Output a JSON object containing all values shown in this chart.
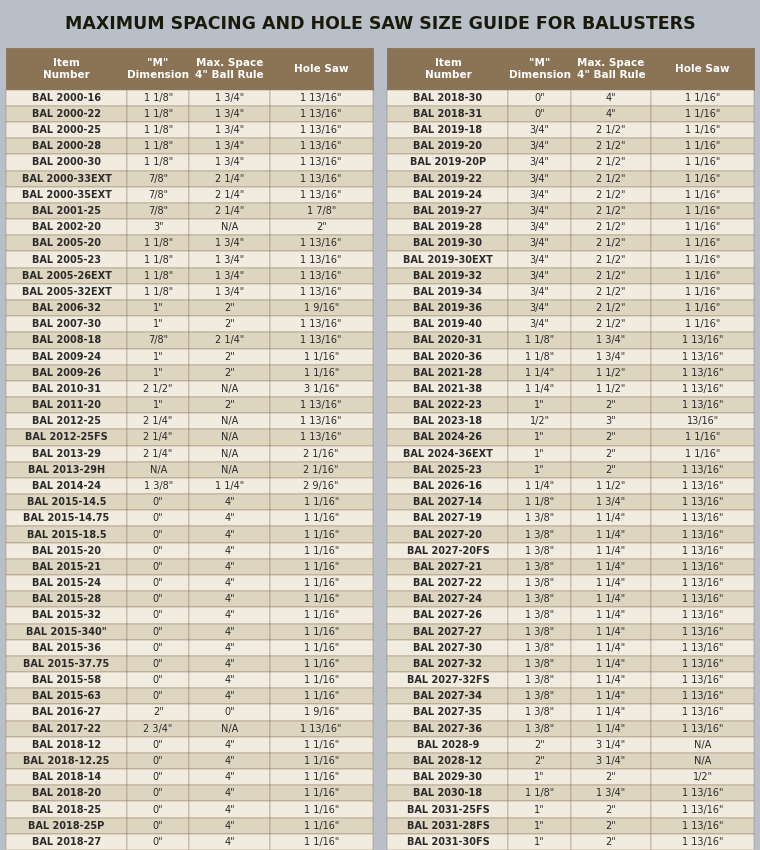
{
  "title": "MAXIMUM SPACING AND HOLE SAW SIZE GUIDE FOR BALUSTERS",
  "title_bg": "#b8bfc8",
  "header_bg": "#8B7355",
  "header_text": "#ffffff",
  "row_bg_odd": "#f2ece0",
  "row_bg_even": "#ddd5c0",
  "col_headers": [
    "Item\nNumber",
    "\"M\"\nDimension",
    "Max. Space\n4\" Ball Rule",
    "Hole Saw",
    "Item\nNumber",
    "\"M\"\nDimension",
    "Max. Space\n4\" Ball Rule",
    "Hole Saw"
  ],
  "left_data": [
    [
      "BAL 2000-16",
      "1 1/8\"",
      "1 3/4\"",
      "1 13/16\""
    ],
    [
      "BAL 2000-22",
      "1 1/8\"",
      "1 3/4\"",
      "1 13/16\""
    ],
    [
      "BAL 2000-25",
      "1 1/8\"",
      "1 3/4\"",
      "1 13/16\""
    ],
    [
      "BAL 2000-28",
      "1 1/8\"",
      "1 3/4\"",
      "1 13/16\""
    ],
    [
      "BAL 2000-30",
      "1 1/8\"",
      "1 3/4\"",
      "1 13/16\""
    ],
    [
      "BAL 2000-33EXT",
      "7/8\"",
      "2 1/4\"",
      "1 13/16\""
    ],
    [
      "BAL 2000-35EXT",
      "7/8\"",
      "2 1/4\"",
      "1 13/16\""
    ],
    [
      "BAL 2001-25",
      "7/8\"",
      "2 1/4\"",
      "1 7/8\""
    ],
    [
      "BAL 2002-20",
      "3\"",
      "N/A",
      "2\""
    ],
    [
      "BAL 2005-20",
      "1 1/8\"",
      "1 3/4\"",
      "1 13/16\""
    ],
    [
      "BAL 2005-23",
      "1 1/8\"",
      "1 3/4\"",
      "1 13/16\""
    ],
    [
      "BAL 2005-26EXT",
      "1 1/8\"",
      "1 3/4\"",
      "1 13/16\""
    ],
    [
      "BAL 2005-32EXT",
      "1 1/8\"",
      "1 3/4\"",
      "1 13/16\""
    ],
    [
      "BAL 2006-32",
      "1\"",
      "2\"",
      "1 9/16\""
    ],
    [
      "BAL 2007-30",
      "1\"",
      "2\"",
      "1 13/16\""
    ],
    [
      "BAL 2008-18",
      "7/8\"",
      "2 1/4\"",
      "1 13/16\""
    ],
    [
      "BAL 2009-24",
      "1\"",
      "2\"",
      "1 1/16\""
    ],
    [
      "BAL 2009-26",
      "1\"",
      "2\"",
      "1 1/16\""
    ],
    [
      "BAL 2010-31",
      "2 1/2\"",
      "N/A",
      "3 1/16\""
    ],
    [
      "BAL 2011-20",
      "1\"",
      "2\"",
      "1 13/16\""
    ],
    [
      "BAL 2012-25",
      "2 1/4\"",
      "N/A",
      "1 13/16\""
    ],
    [
      "BAL 2012-25FS",
      "2 1/4\"",
      "N/A",
      "1 13/16\""
    ],
    [
      "BAL 2013-29",
      "2 1/4\"",
      "N/A",
      "2 1/16\""
    ],
    [
      "BAL 2013-29H",
      "N/A",
      "N/A",
      "2 1/16\""
    ],
    [
      "BAL 2014-24",
      "1 3/8\"",
      "1 1/4\"",
      "2 9/16\""
    ],
    [
      "BAL 2015-14.5",
      "0\"",
      "4\"",
      "1 1/16\""
    ],
    [
      "BAL 2015-14.75",
      "0\"",
      "4\"",
      "1 1/16\""
    ],
    [
      "BAL 2015-18.5",
      "0\"",
      "4\"",
      "1 1/16\""
    ],
    [
      "BAL 2015-20",
      "0\"",
      "4\"",
      "1 1/16\""
    ],
    [
      "BAL 2015-21",
      "0\"",
      "4\"",
      "1 1/16\""
    ],
    [
      "BAL 2015-24",
      "0\"",
      "4\"",
      "1 1/16\""
    ],
    [
      "BAL 2015-28",
      "0\"",
      "4\"",
      "1 1/16\""
    ],
    [
      "BAL 2015-32",
      "0\"",
      "4\"",
      "1 1/16\""
    ],
    [
      "BAL 2015-340\"",
      "0\"",
      "4\"",
      "1 1/16\""
    ],
    [
      "BAL 2015-36",
      "0\"",
      "4\"",
      "1 1/16\""
    ],
    [
      "BAL 2015-37.75",
      "0\"",
      "4\"",
      "1 1/16\""
    ],
    [
      "BAL 2015-58",
      "0\"",
      "4\"",
      "1 1/16\""
    ],
    [
      "BAL 2015-63",
      "0\"",
      "4\"",
      "1 1/16\""
    ],
    [
      "BAL 2016-27",
      "2\"",
      "0\"",
      "1 9/16\""
    ],
    [
      "BAL 2017-22",
      "2 3/4\"",
      "N/A",
      "1 13/16\""
    ],
    [
      "BAL 2018-12",
      "0\"",
      "4\"",
      "1 1/16\""
    ],
    [
      "BAL 2018-12.25",
      "0\"",
      "4\"",
      "1 1/16\""
    ],
    [
      "BAL 2018-14",
      "0\"",
      "4\"",
      "1 1/16\""
    ],
    [
      "BAL 2018-20",
      "0\"",
      "4\"",
      "1 1/16\""
    ],
    [
      "BAL 2018-25",
      "0\"",
      "4\"",
      "1 1/16\""
    ],
    [
      "BAL 2018-25P",
      "0\"",
      "4\"",
      "1 1/16\""
    ],
    [
      "BAL 2018-27",
      "0\"",
      "4\"",
      "1 1/16\""
    ]
  ],
  "right_data": [
    [
      "BAL 2018-30",
      "0\"",
      "4\"",
      "1 1/16\""
    ],
    [
      "BAL 2018-31",
      "0\"",
      "4\"",
      "1 1/16\""
    ],
    [
      "BAL 2019-18",
      "3/4\"",
      "2 1/2\"",
      "1 1/16\""
    ],
    [
      "BAL 2019-20",
      "3/4\"",
      "2 1/2\"",
      "1 1/16\""
    ],
    [
      "BAL 2019-20P",
      "3/4\"",
      "2 1/2\"",
      "1 1/16\""
    ],
    [
      "BAL 2019-22",
      "3/4\"",
      "2 1/2\"",
      "1 1/16\""
    ],
    [
      "BAL 2019-24",
      "3/4\"",
      "2 1/2\"",
      "1 1/16\""
    ],
    [
      "BAL 2019-27",
      "3/4\"",
      "2 1/2\"",
      "1 1/16\""
    ],
    [
      "BAL 2019-28",
      "3/4\"",
      "2 1/2\"",
      "1 1/16\""
    ],
    [
      "BAL 2019-30",
      "3/4\"",
      "2 1/2\"",
      "1 1/16\""
    ],
    [
      "BAL 2019-30EXT",
      "3/4\"",
      "2 1/2\"",
      "1 1/16\""
    ],
    [
      "BAL 2019-32",
      "3/4\"",
      "2 1/2\"",
      "1 1/16\""
    ],
    [
      "BAL 2019-34",
      "3/4\"",
      "2 1/2\"",
      "1 1/16\""
    ],
    [
      "BAL 2019-36",
      "3/4\"",
      "2 1/2\"",
      "1 1/16\""
    ],
    [
      "BAL 2019-40",
      "3/4\"",
      "2 1/2\"",
      "1 1/16\""
    ],
    [
      "BAL 2020-31",
      "1 1/8\"",
      "1 3/4\"",
      "1 13/16\""
    ],
    [
      "BAL 2020-36",
      "1 1/8\"",
      "1 3/4\"",
      "1 13/16\""
    ],
    [
      "BAL 2021-28",
      "1 1/4\"",
      "1 1/2\"",
      "1 13/16\""
    ],
    [
      "BAL 2021-38",
      "1 1/4\"",
      "1 1/2\"",
      "1 13/16\""
    ],
    [
      "BAL 2022-23",
      "1\"",
      "2\"",
      "1 13/16\""
    ],
    [
      "BAL 2023-18",
      "1/2\"",
      "3\"",
      "13/16\""
    ],
    [
      "BAL 2024-26",
      "1\"",
      "2\"",
      "1 1/16\""
    ],
    [
      "BAL 2024-36EXT",
      "1\"",
      "2\"",
      "1 1/16\""
    ],
    [
      "BAL 2025-23",
      "1\"",
      "2\"",
      "1 13/16\""
    ],
    [
      "BAL 2026-16",
      "1 1/4\"",
      "1 1/2\"",
      "1 13/16\""
    ],
    [
      "BAL 2027-14",
      "1 1/8\"",
      "1 3/4\"",
      "1 13/16\""
    ],
    [
      "BAL 2027-19",
      "1 3/8\"",
      "1 1/4\"",
      "1 13/16\""
    ],
    [
      "BAL 2027-20",
      "1 3/8\"",
      "1 1/4\"",
      "1 13/16\""
    ],
    [
      "BAL 2027-20FS",
      "1 3/8\"",
      "1 1/4\"",
      "1 13/16\""
    ],
    [
      "BAL 2027-21",
      "1 3/8\"",
      "1 1/4\"",
      "1 13/16\""
    ],
    [
      "BAL 2027-22",
      "1 3/8\"",
      "1 1/4\"",
      "1 13/16\""
    ],
    [
      "BAL 2027-24",
      "1 3/8\"",
      "1 1/4\"",
      "1 13/16\""
    ],
    [
      "BAL 2027-26",
      "1 3/8\"",
      "1 1/4\"",
      "1 13/16\""
    ],
    [
      "BAL 2027-27",
      "1 3/8\"",
      "1 1/4\"",
      "1 13/16\""
    ],
    [
      "BAL 2027-30",
      "1 3/8\"",
      "1 1/4\"",
      "1 13/16\""
    ],
    [
      "BAL 2027-32",
      "1 3/8\"",
      "1 1/4\"",
      "1 13/16\""
    ],
    [
      "BAL 2027-32FS",
      "1 3/8\"",
      "1 1/4\"",
      "1 13/16\""
    ],
    [
      "BAL 2027-34",
      "1 3/8\"",
      "1 1/4\"",
      "1 13/16\""
    ],
    [
      "BAL 2027-35",
      "1 3/8\"",
      "1 1/4\"",
      "1 13/16\""
    ],
    [
      "BAL 2027-36",
      "1 3/8\"",
      "1 1/4\"",
      "1 13/16\""
    ],
    [
      "BAL 2028-9",
      "2\"",
      "3 1/4\"",
      "N/A"
    ],
    [
      "BAL 2028-12",
      "2\"",
      "3 1/4\"",
      "N/A"
    ],
    [
      "BAL 2029-30",
      "1\"",
      "2\"",
      "1/2\""
    ],
    [
      "BAL 2030-18",
      "1 1/8\"",
      "1 3/4\"",
      "1 13/16\""
    ],
    [
      "BAL 2031-25FS",
      "1\"",
      "2\"",
      "1 13/16\""
    ],
    [
      "BAL 2031-28FS",
      "1\"",
      "2\"",
      "1 13/16\""
    ],
    [
      "BAL 2031-30FS",
      "1\"",
      "2\"",
      "1 13/16\""
    ]
  ],
  "border_color": "#8B7355",
  "text_color_data": "#2a2a2a",
  "text_color_header": "#ffffff",
  "font_size_title": 12.5,
  "font_size_header": 7.5,
  "font_size_data": 7.0,
  "fig_width": 7.6,
  "fig_height": 8.5,
  "dpi": 100
}
